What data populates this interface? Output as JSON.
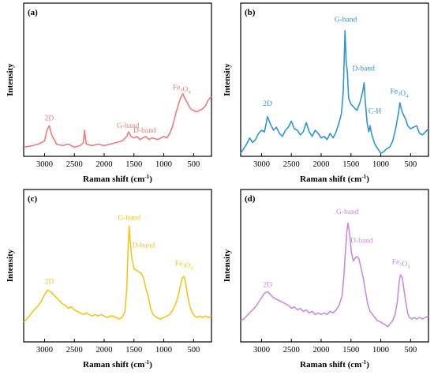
{
  "figure": {
    "panel_labels": [
      "(a)",
      "(b)",
      "(c)",
      "(d)"
    ]
  },
  "chart_data": [
    {
      "type": "line",
      "panel": "(a)",
      "color": "#f07b78",
      "xlabel": "Raman shift (cm⁻¹)",
      "ylabel": "Intensity",
      "xlim": [
        3350,
        200
      ],
      "ylim": [
        0,
        1
      ],
      "x_ticks": [
        3000,
        2500,
        2000,
        1500,
        1000,
        500
      ],
      "annotations": [
        {
          "text": "2D",
          "x": 2920,
          "y": 0.235
        },
        {
          "text": "G-band",
          "x": 1600,
          "y": 0.185
        },
        {
          "text": "D-band",
          "x": 1320,
          "y": 0.155
        },
        {
          "text": "Fe₃O₄",
          "x": 700,
          "y": 0.435
        }
      ],
      "series": [
        {
          "x": [
            3350,
            3200,
            3100,
            3000,
            2960,
            2920,
            2880,
            2800,
            2700,
            2600,
            2500,
            2400,
            2350,
            2330,
            2300,
            2200,
            2100,
            2000,
            1900,
            1800,
            1700,
            1620,
            1590,
            1550,
            1500,
            1450,
            1400,
            1350,
            1300,
            1250,
            1200,
            1100,
            1000,
            950,
            900,
            850,
            800,
            760,
            720,
            680,
            650,
            620,
            580,
            550,
            500,
            450,
            400,
            350,
            300,
            250,
            200
          ],
          "y": [
            0.06,
            0.07,
            0.08,
            0.1,
            0.17,
            0.2,
            0.14,
            0.08,
            0.07,
            0.08,
            0.06,
            0.07,
            0.09,
            0.17,
            0.08,
            0.07,
            0.08,
            0.07,
            0.08,
            0.09,
            0.1,
            0.13,
            0.16,
            0.13,
            0.12,
            0.13,
            0.11,
            0.12,
            0.13,
            0.11,
            0.12,
            0.11,
            0.13,
            0.12,
            0.15,
            0.2,
            0.28,
            0.33,
            0.38,
            0.41,
            0.38,
            0.36,
            0.33,
            0.31,
            0.3,
            0.29,
            0.3,
            0.31,
            0.33,
            0.37,
            0.39
          ]
        }
      ]
    },
    {
      "type": "line",
      "panel": "(b)",
      "color": "#2f95d6",
      "xlabel": "Raman shift (cm⁻¹)",
      "ylabel": "Intensity",
      "xlim": [
        3350,
        200
      ],
      "ylim": [
        0,
        1
      ],
      "x_ticks": [
        3000,
        2500,
        2000,
        1500,
        1000,
        500
      ],
      "annotations": [
        {
          "text": "2D",
          "x": 2900,
          "y": 0.33
        },
        {
          "text": "G-band",
          "x": 1590,
          "y": 0.88
        },
        {
          "text": "D-band",
          "x": 1290,
          "y": 0.56
        },
        {
          "text": "C-H",
          "x": 1100,
          "y": 0.28
        },
        {
          "text": "Fe₃O₄",
          "x": 690,
          "y": 0.41
        }
      ],
      "series": [
        {
          "x": [
            3350,
            3300,
            3250,
            3200,
            3150,
            3100,
            3050,
            3000,
            2950,
            2900,
            2870,
            2850,
            2800,
            2750,
            2700,
            2650,
            2600,
            2550,
            2500,
            2450,
            2400,
            2350,
            2300,
            2250,
            2200,
            2150,
            2100,
            2050,
            2000,
            1950,
            1900,
            1850,
            1800,
            1750,
            1700,
            1660,
            1630,
            1600,
            1580,
            1560,
            1540,
            1500,
            1450,
            1400,
            1350,
            1300,
            1280,
            1260,
            1230,
            1200,
            1180,
            1150,
            1100,
            1050,
            1000,
            950,
            900,
            850,
            800,
            750,
            700,
            680,
            650,
            620,
            580,
            550,
            500,
            450,
            400,
            350,
            300,
            250,
            200
          ],
          "y": [
            0.02,
            0.05,
            0.08,
            0.12,
            0.09,
            0.11,
            0.15,
            0.17,
            0.16,
            0.26,
            0.23,
            0.21,
            0.17,
            0.19,
            0.15,
            0.13,
            0.17,
            0.19,
            0.23,
            0.18,
            0.17,
            0.14,
            0.16,
            0.22,
            0.16,
            0.13,
            0.17,
            0.15,
            0.12,
            0.13,
            0.11,
            0.15,
            0.12,
            0.16,
            0.22,
            0.28,
            0.42,
            0.82,
            0.62,
            0.55,
            0.38,
            0.34,
            0.32,
            0.3,
            0.35,
            0.43,
            0.48,
            0.36,
            0.22,
            0.16,
            0.2,
            0.14,
            0.08,
            0.05,
            0.02,
            0.03,
            0.05,
            0.06,
            0.1,
            0.18,
            0.29,
            0.35,
            0.3,
            0.27,
            0.24,
            0.2,
            0.18,
            0.19,
            0.2,
            0.15,
            0.14,
            0.16,
            0.18
          ]
        }
      ]
    },
    {
      "type": "line",
      "panel": "(c)",
      "color": "#f5c518",
      "xlabel": "Raman shift (cm⁻¹)",
      "ylabel": "Intensity",
      "xlim": [
        3350,
        200
      ],
      "ylim": [
        0,
        1
      ],
      "x_ticks": [
        3000,
        2500,
        2000,
        1500,
        1000,
        500
      ],
      "annotations": [
        {
          "text": "2D",
          "x": 2920,
          "y": 0.38
        },
        {
          "text": "G-band",
          "x": 1580,
          "y": 0.8
        },
        {
          "text": "D-band",
          "x": 1340,
          "y": 0.62
        },
        {
          "text": "Fe₃O₄",
          "x": 660,
          "y": 0.5
        }
      ],
      "series": [
        {
          "x": [
            3350,
            3300,
            3250,
            3200,
            3150,
            3100,
            3050,
            3000,
            2950,
            2900,
            2850,
            2800,
            2750,
            2700,
            2650,
            2600,
            2550,
            2500,
            2450,
            2400,
            2350,
            2300,
            2250,
            2200,
            2150,
            2100,
            2050,
            2000,
            1950,
            1900,
            1850,
            1800,
            1750,
            1700,
            1650,
            1620,
            1600,
            1580,
            1560,
            1540,
            1500,
            1460,
            1420,
            1380,
            1340,
            1300,
            1260,
            1220,
            1180,
            1120,
            1060,
            1000,
            950,
            900,
            850,
            800,
            760,
            720,
            690,
            660,
            630,
            600,
            560,
            520,
            480,
            440,
            400,
            350,
            300,
            250,
            200
          ],
          "y": [
            0.13,
            0.15,
            0.17,
            0.2,
            0.22,
            0.24,
            0.27,
            0.31,
            0.34,
            0.33,
            0.31,
            0.29,
            0.27,
            0.25,
            0.24,
            0.22,
            0.23,
            0.21,
            0.2,
            0.19,
            0.18,
            0.19,
            0.18,
            0.17,
            0.18,
            0.17,
            0.18,
            0.17,
            0.16,
            0.17,
            0.17,
            0.16,
            0.15,
            0.16,
            0.2,
            0.35,
            0.6,
            0.76,
            0.65,
            0.56,
            0.48,
            0.47,
            0.46,
            0.45,
            0.42,
            0.35,
            0.3,
            0.22,
            0.18,
            0.16,
            0.15,
            0.16,
            0.17,
            0.18,
            0.21,
            0.25,
            0.3,
            0.37,
            0.42,
            0.43,
            0.38,
            0.3,
            0.23,
            0.19,
            0.17,
            0.16,
            0.17,
            0.16,
            0.17,
            0.16,
            0.17
          ]
        }
      ]
    },
    {
      "type": "line",
      "panel": "(d)",
      "color": "#c98ae0",
      "xlabel": "Raman shift (cm⁻¹)",
      "ylabel": "Intensity",
      "xlim": [
        3350,
        200
      ],
      "ylim": [
        0,
        1
      ],
      "x_ticks": [
        3000,
        2500,
        2000,
        1500,
        1000,
        500
      ],
      "annotations": [
        {
          "text": "2D",
          "x": 2900,
          "y": 0.36
        },
        {
          "text": "G-band",
          "x": 1560,
          "y": 0.84
        },
        {
          "text": "D-band",
          "x": 1320,
          "y": 0.65
        },
        {
          "text": "Fe₃O₄",
          "x": 660,
          "y": 0.51
        }
      ],
      "series": [
        {
          "x": [
            3350,
            3300,
            3250,
            3200,
            3150,
            3100,
            3050,
            3000,
            2950,
            2900,
            2850,
            2800,
            2750,
            2700,
            2650,
            2600,
            2550,
            2500,
            2450,
            2400,
            2350,
            2300,
            2250,
            2200,
            2150,
            2100,
            2050,
            2000,
            1950,
            1900,
            1850,
            1800,
            1750,
            1700,
            1650,
            1620,
            1600,
            1570,
            1550,
            1520,
            1490,
            1460,
            1430,
            1400,
            1370,
            1340,
            1300,
            1260,
            1220,
            1180,
            1120,
            1060,
            1000,
            960,
            920,
            880,
            840,
            800,
            760,
            720,
            690,
            670,
            640,
            610,
            580,
            550,
            520,
            480,
            440,
            400,
            350,
            300,
            250,
            200
          ],
          "y": [
            0.14,
            0.15,
            0.17,
            0.19,
            0.21,
            0.23,
            0.26,
            0.29,
            0.32,
            0.33,
            0.31,
            0.29,
            0.28,
            0.27,
            0.26,
            0.25,
            0.24,
            0.22,
            0.23,
            0.21,
            0.22,
            0.2,
            0.21,
            0.19,
            0.2,
            0.18,
            0.19,
            0.18,
            0.19,
            0.18,
            0.2,
            0.19,
            0.21,
            0.24,
            0.3,
            0.42,
            0.55,
            0.72,
            0.78,
            0.7,
            0.58,
            0.53,
            0.55,
            0.56,
            0.55,
            0.5,
            0.43,
            0.34,
            0.25,
            0.2,
            0.17,
            0.14,
            0.13,
            0.12,
            0.11,
            0.1,
            0.12,
            0.14,
            0.18,
            0.27,
            0.4,
            0.44,
            0.42,
            0.34,
            0.26,
            0.19,
            0.16,
            0.15,
            0.16,
            0.15,
            0.16,
            0.15,
            0.16,
            0.17
          ]
        }
      ]
    }
  ]
}
